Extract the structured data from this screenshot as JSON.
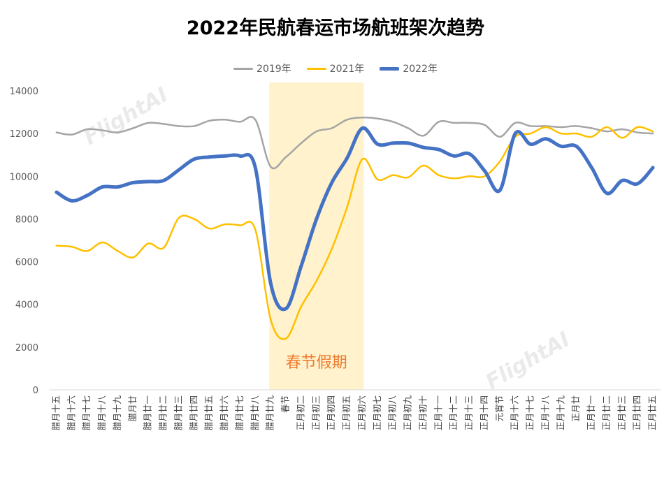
{
  "chart_data": {
    "type": "line",
    "title": "2022年民航春运市场航班架次趋势",
    "xlabel": "",
    "ylabel": "",
    "ylim": [
      0,
      14000
    ],
    "yticks": [
      0,
      2000,
      4000,
      6000,
      8000,
      10000,
      12000,
      14000
    ],
    "grid": false,
    "legend_position": "top",
    "categories": [
      "腊月十五",
      "腊月十六",
      "腊月十七",
      "腊月十八",
      "腊月十九",
      "腊月廿",
      "腊月廿一",
      "腊月廿二",
      "腊月廿三",
      "腊月廿四",
      "腊月廿五",
      "腊月廿六",
      "腊月廿七",
      "腊月廿八",
      "腊月廿九",
      "春节",
      "正月初二",
      "正月初三",
      "正月初四",
      "正月初五",
      "正月初六",
      "正月初七",
      "正月初八",
      "正月初九",
      "正月初十",
      "正月十一",
      "正月十二",
      "正月十三",
      "正月十四",
      "元宵节",
      "正月十六",
      "正月十七",
      "正月十八",
      "正月十九",
      "正月廿",
      "正月廿一",
      "正月廿二",
      "正月廿三",
      "正月廿四",
      "正月廿五"
    ],
    "series": [
      {
        "name": "2019年",
        "color": "#a5a5a5",
        "width": 2.5,
        "values": [
          12050,
          11950,
          12200,
          12150,
          12050,
          12250,
          12500,
          12450,
          12350,
          12350,
          12600,
          12650,
          12550,
          12650,
          10450,
          10900,
          11550,
          12100,
          12250,
          12650,
          12750,
          12700,
          12550,
          12250,
          11900,
          12550,
          12500,
          12500,
          12400,
          11850,
          12500,
          12350,
          12350,
          12300,
          12350,
          12250,
          12100,
          12200,
          12050,
          12000
        ]
      },
      {
        "name": "2021年",
        "color": "#ffc000",
        "width": 2.5,
        "values": [
          6750,
          6700,
          6500,
          6900,
          6500,
          6200,
          6850,
          6650,
          8050,
          8000,
          7550,
          7750,
          7700,
          7500,
          3300,
          2400,
          3900,
          5100,
          6600,
          8550,
          10800,
          9850,
          10050,
          9950,
          10500,
          10050,
          9900,
          10000,
          10000,
          10700,
          11850,
          12000,
          12300,
          12000,
          12000,
          11850,
          12300,
          11800,
          12300,
          12100
        ]
      },
      {
        "name": "2022年",
        "color": "#4472c4",
        "width": 5,
        "values": [
          9250,
          8850,
          9100,
          9500,
          9500,
          9700,
          9750,
          9800,
          10300,
          10800,
          10900,
          10950,
          10950,
          10400,
          5000,
          3800,
          5800,
          8000,
          9700,
          10850,
          12250,
          11500,
          11550,
          11550,
          11350,
          11250,
          10950,
          11050,
          10250,
          9350,
          12000,
          11500,
          11750,
          11400,
          11400,
          10400,
          9200,
          9800,
          9650,
          10400
        ]
      }
    ],
    "highlight": {
      "from": "腊月廿九",
      "to": "正月初六",
      "label": "春节假期",
      "color": "#fff2cc"
    },
    "watermark": "FlightAI"
  }
}
